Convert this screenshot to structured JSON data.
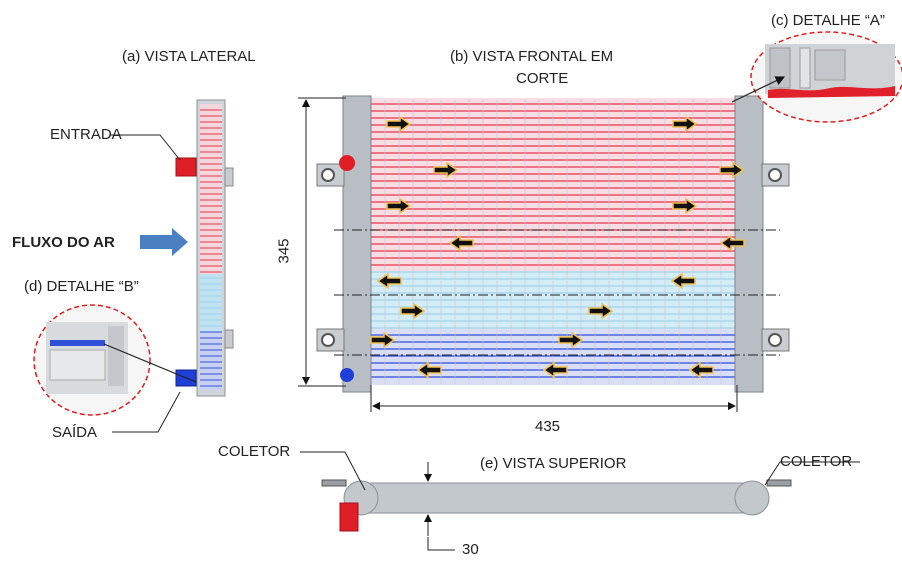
{
  "labels": {
    "side_view": "(a) VISTA LATERAL",
    "front_view_line1": "(b) VISTA FRONTAL EM",
    "front_view_line2": "CORTE",
    "detail_a": "(c) DETALHE “A”",
    "detail_b": "(d) DETALHE “B”",
    "top_view": "(e) VISTA SUPERIOR",
    "inlet": "ENTRADA",
    "outlet": "SAÍDA",
    "air_flow": "FLUXO DO AR",
    "collector_left": "COLETOR",
    "collector_right": "COLETOR"
  },
  "dimensions": {
    "height": "345",
    "width": "435",
    "thickness": "30"
  },
  "colors": {
    "hot": "#e8334a",
    "hot_fill": "#f3c6cf",
    "cold": "#2f4fd8",
    "cold_light": "#9fd3ea",
    "header": "#b9bec4",
    "arrow": "#111111",
    "arrow_outline": "#f2c14e",
    "detail_circle": "#e02020",
    "air_arrow": "#4a7fc1"
  },
  "flow_arrows": [
    {
      "dir": "right"
    },
    {
      "dir": "right"
    },
    {
      "dir": "right"
    },
    {
      "dir": "right"
    },
    {
      "dir": "right"
    },
    {
      "dir": "right"
    },
    {
      "dir": "left"
    },
    {
      "dir": "left"
    },
    {
      "dir": "left"
    },
    {
      "dir": "left"
    },
    {
      "dir": "right"
    },
    {
      "dir": "right"
    },
    {
      "dir": "right"
    },
    {
      "dir": "right"
    },
    {
      "dir": "left"
    },
    {
      "dir": "left"
    },
    {
      "dir": "left"
    }
  ]
}
